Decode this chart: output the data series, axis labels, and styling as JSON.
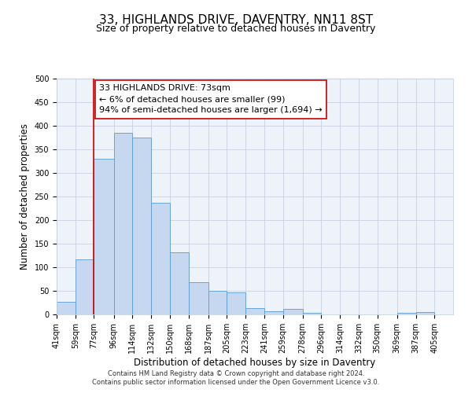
{
  "title": "33, HIGHLANDS DRIVE, DAVENTRY, NN11 8ST",
  "subtitle": "Size of property relative to detached houses in Daventry",
  "xlabel": "Distribution of detached houses by size in Daventry",
  "ylabel": "Number of detached properties",
  "bar_left_edges": [
    41,
    59,
    77,
    96,
    114,
    132,
    150,
    168,
    187,
    205,
    223,
    241,
    259,
    278,
    296,
    314,
    332,
    350,
    369,
    387
  ],
  "bar_heights": [
    27,
    116,
    330,
    385,
    375,
    237,
    132,
    68,
    50,
    46,
    14,
    6,
    11,
    3,
    0,
    0,
    0,
    0,
    3,
    5
  ],
  "bar_widths": [
    18,
    18,
    19,
    18,
    18,
    18,
    18,
    19,
    18,
    18,
    18,
    18,
    19,
    18,
    18,
    18,
    18,
    19,
    18,
    18
  ],
  "tick_labels": [
    "41sqm",
    "59sqm",
    "77sqm",
    "96sqm",
    "114sqm",
    "132sqm",
    "150sqm",
    "168sqm",
    "187sqm",
    "205sqm",
    "223sqm",
    "241sqm",
    "259sqm",
    "278sqm",
    "296sqm",
    "314sqm",
    "332sqm",
    "350sqm",
    "369sqm",
    "387sqm",
    "405sqm"
  ],
  "tick_positions": [
    41,
    59,
    77,
    96,
    114,
    132,
    150,
    168,
    187,
    205,
    223,
    241,
    259,
    278,
    296,
    314,
    332,
    350,
    369,
    387,
    405
  ],
  "ylim": [
    0,
    500
  ],
  "yticks": [
    0,
    50,
    100,
    150,
    200,
    250,
    300,
    350,
    400,
    450,
    500
  ],
  "bar_facecolor": "#c5d8f0",
  "bar_edgecolor": "#5b9bd5",
  "grid_color": "#c8d0e0",
  "bg_color": "#eef2f9",
  "vline_x": 77,
  "vline_color": "#cc0000",
  "annotation_line1": "33 HIGHLANDS DRIVE: 73sqm",
  "annotation_line2": "← 6% of detached houses are smaller (99)",
  "annotation_line3": "94% of semi-detached houses are larger (1,694) →",
  "footer_line1": "Contains HM Land Registry data © Crown copyright and database right 2024.",
  "footer_line2": "Contains public sector information licensed under the Open Government Licence v3.0.",
  "title_fontsize": 11,
  "subtitle_fontsize": 9,
  "axis_label_fontsize": 8.5,
  "tick_fontsize": 7,
  "annotation_fontsize": 8,
  "footer_fontsize": 6
}
